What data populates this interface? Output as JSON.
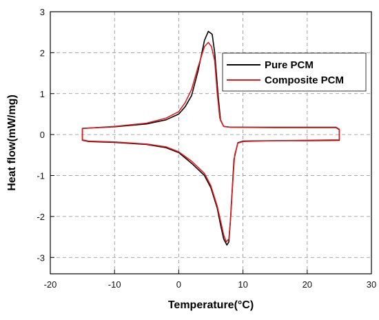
{
  "chart_data": {
    "type": "line",
    "xlabel": "Temperature(°C)",
    "ylabel": "Heat flow(mW/mg)",
    "xlim": [
      -20,
      30
    ],
    "ylim": [
      -3.4,
      3
    ],
    "xticks": [
      -20,
      -10,
      0,
      10,
      20,
      30
    ],
    "yticks": [
      -3,
      -2,
      -1,
      0,
      1,
      2,
      3
    ],
    "grid": true,
    "legend_position": "top-right",
    "series": [
      {
        "name": "Pure PCM",
        "color": "#000000",
        "points": [
          [
            -15,
            0.15
          ],
          [
            -10,
            0.19
          ],
          [
            -5,
            0.26
          ],
          [
            -2,
            0.36
          ],
          [
            0,
            0.5
          ],
          [
            1,
            0.68
          ],
          [
            2,
            0.95
          ],
          [
            3,
            1.55
          ],
          [
            4,
            2.3
          ],
          [
            4.6,
            2.52
          ],
          [
            5.2,
            2.45
          ],
          [
            5.6,
            2.0
          ],
          [
            6.1,
            1.0
          ],
          [
            6.5,
            0.35
          ],
          [
            7,
            0.2
          ],
          [
            8,
            0.18
          ],
          [
            15,
            0.17
          ],
          [
            24.5,
            0.17
          ],
          [
            25,
            0.12
          ],
          [
            25,
            -0.14
          ],
          [
            20,
            -0.15
          ],
          [
            15,
            -0.15
          ],
          [
            10,
            -0.16
          ],
          [
            9.2,
            -0.2
          ],
          [
            8.6,
            -0.6
          ],
          [
            8.3,
            -1.4
          ],
          [
            8,
            -2.2
          ],
          [
            7.8,
            -2.62
          ],
          [
            7.5,
            -2.7
          ],
          [
            7.0,
            -2.55
          ],
          [
            6.5,
            -2.2
          ],
          [
            6,
            -1.8
          ],
          [
            5,
            -1.3
          ],
          [
            4,
            -1.0
          ],
          [
            2,
            -0.7
          ],
          [
            0,
            -0.44
          ],
          [
            -2,
            -0.32
          ],
          [
            -5,
            -0.24
          ],
          [
            -10,
            -0.19
          ],
          [
            -14,
            -0.17
          ],
          [
            -15,
            -0.14
          ],
          [
            -15,
            0.15
          ]
        ]
      },
      {
        "name": "Composite PCM",
        "color": "#e31a1c",
        "points": [
          [
            -15,
            0.15
          ],
          [
            -10,
            0.2
          ],
          [
            -5,
            0.28
          ],
          [
            -2,
            0.4
          ],
          [
            0,
            0.56
          ],
          [
            1,
            0.78
          ],
          [
            2,
            1.1
          ],
          [
            3,
            1.65
          ],
          [
            4,
            2.15
          ],
          [
            4.6,
            2.25
          ],
          [
            5.1,
            2.15
          ],
          [
            5.6,
            1.8
          ],
          [
            6,
            1.0
          ],
          [
            6.4,
            0.4
          ],
          [
            7,
            0.2
          ],
          [
            8,
            0.18
          ],
          [
            15,
            0.18
          ],
          [
            24.5,
            0.18
          ],
          [
            25,
            0.13
          ],
          [
            25,
            -0.13
          ],
          [
            20,
            -0.14
          ],
          [
            15,
            -0.15
          ],
          [
            10,
            -0.17
          ],
          [
            9.2,
            -0.21
          ],
          [
            8.7,
            -0.5
          ],
          [
            8.4,
            -1.2
          ],
          [
            8.1,
            -2.0
          ],
          [
            7.8,
            -2.55
          ],
          [
            7.4,
            -2.62
          ],
          [
            7.0,
            -2.45
          ],
          [
            6.5,
            -2.1
          ],
          [
            6,
            -1.75
          ],
          [
            5,
            -1.25
          ],
          [
            4,
            -0.95
          ],
          [
            2,
            -0.65
          ],
          [
            0,
            -0.42
          ],
          [
            -2,
            -0.3
          ],
          [
            -5,
            -0.23
          ],
          [
            -10,
            -0.18
          ],
          [
            -14,
            -0.16
          ],
          [
            -15,
            -0.13
          ],
          [
            -15,
            0.15
          ]
        ]
      }
    ]
  }
}
